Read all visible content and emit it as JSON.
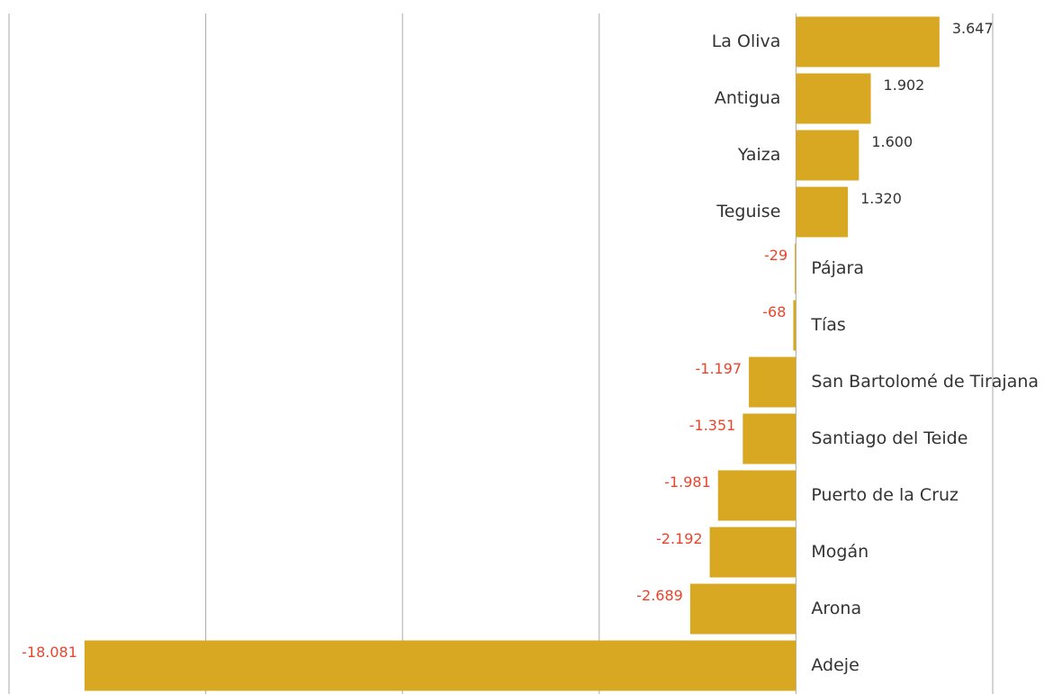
{
  "chart_data": {
    "type": "bar",
    "orientation": "horizontal",
    "categories": [
      "La Oliva",
      "Antigua",
      "Yaiza",
      "Teguise",
      "Pájara",
      "Tías",
      "San Bartolomé de Tirajana",
      "Santiago del Teide",
      "Puerto de la Cruz",
      "Mogán",
      "Arona",
      "Adeje"
    ],
    "values": [
      3647,
      1902,
      1600,
      1320,
      -29,
      -68,
      -1197,
      -1351,
      -1981,
      -2192,
      -2689,
      -18081
    ],
    "value_labels": [
      "3.647",
      "1.902",
      "1.600",
      "1.320",
      "-29",
      "-68",
      "-1.197",
      "-1.351",
      "-1.981",
      "-2.192",
      "-2.689",
      "-18.081"
    ],
    "color": "#d9a823",
    "label_color": "#333333",
    "negative_label_color": "#e8452c",
    "xlim": [
      -20000,
      5000
    ],
    "xticks": [
      -20000,
      -15000,
      -10000,
      -5000,
      0,
      5000
    ],
    "grid": true
  }
}
